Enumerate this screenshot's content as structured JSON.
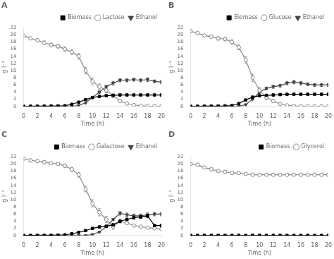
{
  "chart_data": [
    {
      "type": "line",
      "title": "A",
      "xlabel": "Time (h)",
      "ylabel": "g l⁻¹",
      "x": [
        0,
        1,
        2,
        3,
        4,
        5,
        6,
        7,
        8,
        9,
        10,
        11,
        12,
        13,
        14,
        15,
        16,
        17,
        18,
        19,
        20
      ],
      "xlim": [
        0,
        20
      ],
      "xticks": [
        0,
        2,
        4,
        6,
        8,
        10,
        12,
        14,
        16,
        18,
        20
      ],
      "ylim": [
        0,
        22
      ],
      "yticks": [
        0,
        2,
        4,
        6,
        8,
        10,
        12,
        14,
        16,
        18,
        20,
        22
      ],
      "grid": false,
      "legend": "upper right",
      "series": [
        {
          "name": "Biomass",
          "color": "#000000",
          "marker": "square",
          "line_style": "solid",
          "values": [
            0.05,
            0.05,
            0.07,
            0.08,
            0.1,
            0.13,
            0.2,
            0.6,
            1.2,
            1.9,
            2.5,
            2.8,
            3.0,
            3.1,
            3.2,
            3.2,
            3.2,
            3.2,
            3.2,
            3.2,
            3.2
          ],
          "errors": [
            0.02,
            0.02,
            0.02,
            0.02,
            0.02,
            0.02,
            0.03,
            0.05,
            0.1,
            0.15,
            0.2,
            0.2,
            0.2,
            0.2,
            0.15,
            0.15,
            0.15,
            0.15,
            0.15,
            0.15,
            0.15
          ]
        },
        {
          "name": "Lactose",
          "color": "#888888",
          "marker": "open_circle",
          "line_style": "solid",
          "values": [
            19.8,
            19.0,
            18.5,
            17.8,
            17.2,
            16.8,
            16.0,
            15.2,
            14.0,
            10.0,
            7.0,
            5.5,
            4.5,
            3.0,
            1.5,
            0.8,
            0.4,
            0.2,
            0.1,
            0.05,
            0.02
          ],
          "errors": [
            0.3,
            0.4,
            0.4,
            0.5,
            0.5,
            0.5,
            0.6,
            0.7,
            0.8,
            0.9,
            1.0,
            0.8,
            0.7,
            0.5,
            0.4,
            0.3,
            0.2,
            0.1,
            0.05,
            0.03,
            0.02
          ]
        },
        {
          "name": "Ethanol",
          "color": "#444444",
          "marker": "triangle_down",
          "line_style": "solid",
          "values": [
            0.0,
            0.0,
            0.0,
            0.0,
            0.0,
            0.0,
            0.0,
            0.0,
            0.3,
            1.0,
            2.5,
            4.0,
            5.5,
            6.5,
            7.3,
            7.3,
            7.5,
            7.3,
            7.5,
            7.0,
            6.8
          ],
          "errors": [
            0.0,
            0.0,
            0.0,
            0.0,
            0.0,
            0.0,
            0.0,
            0.0,
            0.05,
            0.1,
            0.2,
            0.3,
            0.4,
            0.5,
            0.4,
            0.4,
            0.4,
            0.4,
            0.5,
            0.4,
            0.4
          ]
        }
      ]
    },
    {
      "type": "line",
      "title": "B",
      "xlabel": "Time (h)",
      "ylabel": "g l⁻¹",
      "x": [
        0,
        1,
        2,
        3,
        4,
        5,
        6,
        7,
        8,
        9,
        10,
        11,
        12,
        13,
        14,
        15,
        16,
        17,
        18,
        19,
        20
      ],
      "xlim": [
        0,
        20
      ],
      "xticks": [
        0,
        2,
        4,
        6,
        8,
        10,
        12,
        14,
        16,
        18,
        20
      ],
      "ylim": [
        0,
        22
      ],
      "yticks": [
        0,
        2,
        4,
        6,
        8,
        10,
        12,
        14,
        16,
        18,
        20,
        22
      ],
      "grid": false,
      "legend": "upper right",
      "series": [
        {
          "name": "Biomass",
          "color": "#000000",
          "marker": "square",
          "line_style": "solid",
          "values": [
            0.05,
            0.05,
            0.07,
            0.08,
            0.1,
            0.15,
            0.25,
            0.8,
            1.8,
            2.6,
            3.0,
            3.1,
            3.2,
            3.3,
            3.4,
            3.4,
            3.4,
            3.4,
            3.4,
            3.4,
            3.4
          ],
          "errors": [
            0.02,
            0.02,
            0.02,
            0.02,
            0.02,
            0.02,
            0.03,
            0.06,
            0.12,
            0.2,
            0.2,
            0.2,
            0.2,
            0.2,
            0.2,
            0.2,
            0.2,
            0.2,
            0.2,
            0.2,
            0.2
          ]
        },
        {
          "name": "Glucose",
          "color": "#888888",
          "marker": "open_circle",
          "line_style": "solid",
          "values": [
            21.0,
            20.5,
            19.8,
            19.5,
            19.0,
            18.8,
            18.0,
            16.5,
            13.0,
            8.0,
            4.5,
            2.5,
            1.5,
            0.7,
            0.3,
            0.15,
            0.1,
            0.05,
            0.05,
            0.05,
            0.02
          ],
          "errors": [
            0.4,
            0.4,
            0.4,
            0.4,
            0.5,
            0.5,
            0.6,
            0.7,
            0.9,
            1.0,
            0.8,
            0.6,
            0.4,
            0.3,
            0.2,
            0.1,
            0.08,
            0.05,
            0.05,
            0.05,
            0.02
          ]
        },
        {
          "name": "Ethanol",
          "color": "#444444",
          "marker": "triangle_down",
          "line_style": "solid",
          "values": [
            0.0,
            0.0,
            0.0,
            0.0,
            0.0,
            0.0,
            0.0,
            0.0,
            0.5,
            2.0,
            4.0,
            5.0,
            5.5,
            5.8,
            6.5,
            6.8,
            6.5,
            6.2,
            6.0,
            6.0,
            6.0
          ],
          "errors": [
            0.0,
            0.0,
            0.0,
            0.0,
            0.0,
            0.0,
            0.0,
            0.0,
            0.05,
            0.15,
            0.3,
            0.4,
            0.4,
            0.4,
            0.5,
            0.5,
            0.5,
            0.4,
            0.4,
            0.4,
            0.4
          ]
        }
      ]
    },
    {
      "type": "line",
      "title": "C",
      "xlabel": "Time (h)",
      "ylabel": "g l⁻¹",
      "x": [
        0,
        1,
        2,
        3,
        4,
        5,
        6,
        7,
        8,
        9,
        10,
        11,
        12,
        13,
        14,
        15,
        16,
        17,
        18,
        19,
        20
      ],
      "xlim": [
        0,
        20
      ],
      "xticks": [
        0,
        2,
        4,
        6,
        8,
        10,
        12,
        14,
        16,
        18,
        20
      ],
      "ylim": [
        0,
        22
      ],
      "yticks": [
        0,
        2,
        4,
        6,
        8,
        10,
        12,
        14,
        16,
        18,
        20,
        22
      ],
      "grid": false,
      "legend": "upper right",
      "series": [
        {
          "name": "Biomass",
          "color": "#000000",
          "marker": "square",
          "line_style": "solid",
          "values": [
            0.05,
            0.05,
            0.07,
            0.08,
            0.1,
            0.13,
            0.2,
            0.5,
            0.9,
            1.4,
            2.0,
            2.4,
            2.6,
            3.0,
            4.0,
            4.5,
            5.0,
            5.2,
            5.5,
            2.8,
            2.8
          ],
          "errors": [
            0.02,
            0.02,
            0.02,
            0.02,
            0.02,
            0.02,
            0.03,
            0.05,
            0.08,
            0.1,
            0.15,
            0.2,
            0.2,
            0.25,
            0.3,
            0.35,
            0.4,
            0.4,
            0.5,
            0.3,
            0.3
          ]
        },
        {
          "name": "Galactose",
          "color": "#888888",
          "marker": "open_circle",
          "line_style": "solid",
          "values": [
            21.5,
            21.0,
            20.8,
            20.5,
            20.2,
            20.0,
            19.5,
            18.5,
            17.0,
            13.0,
            9.0,
            6.5,
            4.5,
            2.5,
            4.0,
            3.5,
            2.8,
            2.5,
            2.2,
            2.0,
            1.8
          ],
          "errors": [
            0.4,
            0.4,
            0.4,
            0.4,
            0.4,
            0.4,
            0.5,
            0.6,
            0.7,
            0.8,
            1.0,
            1.0,
            0.9,
            0.7,
            0.5,
            0.4,
            0.3,
            0.3,
            0.3,
            0.2,
            0.2
          ]
        },
        {
          "name": "Ethanol",
          "color": "#444444",
          "marker": "triangle_down",
          "line_style": "solid",
          "values": [
            0.0,
            0.0,
            0.0,
            0.0,
            0.0,
            0.0,
            0.0,
            0.0,
            0.0,
            0.0,
            0.3,
            1.0,
            2.5,
            4.5,
            6.2,
            5.8,
            5.5,
            5.5,
            5.8,
            6.0,
            6.0
          ],
          "errors": [
            0.0,
            0.0,
            0.0,
            0.0,
            0.0,
            0.0,
            0.0,
            0.0,
            0.0,
            0.0,
            0.05,
            0.1,
            0.2,
            0.3,
            0.5,
            0.5,
            0.5,
            0.5,
            0.5,
            0.5,
            0.5
          ]
        }
      ]
    },
    {
      "type": "line",
      "title": "D",
      "xlabel": "Time (h)",
      "ylabel": "g l⁻¹",
      "x": [
        0,
        1,
        2,
        3,
        4,
        5,
        6,
        7,
        8,
        9,
        10,
        11,
        12,
        13,
        14,
        15,
        16,
        17,
        18,
        19,
        20
      ],
      "xlim": [
        0,
        20
      ],
      "xticks": [
        0,
        2,
        4,
        6,
        8,
        10,
        12,
        14,
        16,
        18,
        20
      ],
      "ylim": [
        0,
        22
      ],
      "yticks": [
        0,
        2,
        4,
        6,
        8,
        10,
        12,
        14,
        16,
        18,
        20,
        22
      ],
      "grid": false,
      "legend": "upper right",
      "series": [
        {
          "name": "Biomass",
          "color": "#000000",
          "marker": "square",
          "line_style": "solid",
          "values": [
            0.05,
            0.05,
            0.05,
            0.05,
            0.05,
            0.05,
            0.05,
            0.05,
            0.05,
            0.05,
            0.05,
            0.05,
            0.05,
            0.05,
            0.05,
            0.05,
            0.05,
            0.05,
            0.05,
            0.05,
            0.05
          ],
          "errors": [
            0.02,
            0.02,
            0.02,
            0.02,
            0.02,
            0.02,
            0.02,
            0.02,
            0.02,
            0.02,
            0.02,
            0.02,
            0.02,
            0.02,
            0.02,
            0.02,
            0.02,
            0.02,
            0.02,
            0.02,
            0.02
          ]
        },
        {
          "name": "Glycerol",
          "color": "#888888",
          "marker": "open_circle",
          "line_style": "solid",
          "values": [
            20.0,
            19.8,
            19.0,
            18.5,
            18.0,
            17.8,
            17.5,
            17.5,
            17.2,
            17.0,
            17.0,
            17.0,
            17.0,
            17.0,
            17.0,
            17.0,
            17.0,
            17.0,
            17.0,
            17.0,
            17.0
          ],
          "errors": [
            0.3,
            0.3,
            0.4,
            0.4,
            0.4,
            0.4,
            0.4,
            0.4,
            0.4,
            0.4,
            0.4,
            0.4,
            0.4,
            0.4,
            0.4,
            0.4,
            0.4,
            0.4,
            0.4,
            0.4,
            0.4
          ]
        }
      ]
    }
  ]
}
